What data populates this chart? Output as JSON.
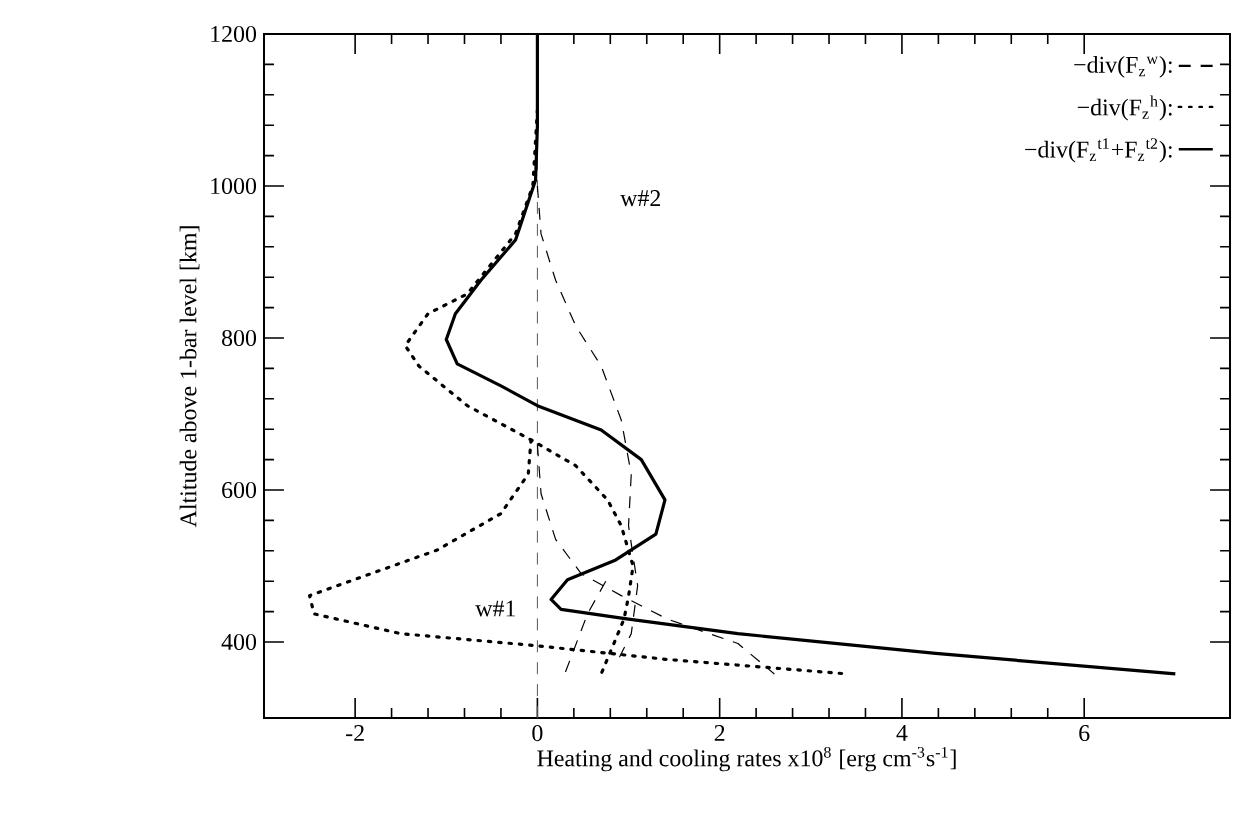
{
  "chart_data": {
    "type": "line",
    "xlabel": "Heating and cooling rates x10$^{8}$    [erg cm$^{-3}$s$^{-1}$]",
    "ylabel": "Altitude above 1-bar level  [km]",
    "xlim": [
      -3,
      7.6
    ],
    "ylim": [
      300,
      1200
    ],
    "xticks": [
      -2,
      0,
      2,
      4,
      6
    ],
    "yticks": [
      400,
      600,
      800,
      1000,
      1200
    ],
    "legend": "top right",
    "grid": false,
    "ref_lines": [
      {
        "axis": "x",
        "value": 0,
        "line_style": "dashed",
        "color": "#555555"
      }
    ],
    "annotations": [
      "w#2",
      "w#1"
    ],
    "series": [
      {
        "name": "−div(F$_{z}$$^{w}$):",
        "color": "#000000",
        "line_style": "dashed",
        "x": [
          0,
          0.04,
          0.2,
          0.42,
          0.7,
          0.92,
          1.03,
          1.0,
          1.1,
          1.03,
          0.9
        ],
        "values": [
          1000,
          937,
          876,
          816,
          763,
          692,
          621,
          553,
          474,
          411,
          380
        ]
      },
      {
        "name": "−div(F$_{z}$$^{h}$):",
        "color": "#000000",
        "line_style": "dotted",
        "x": [
          0,
          -0.05,
          -0.24,
          -0.77,
          -1.2,
          -1.45,
          -1.3,
          -0.77,
          -0.07,
          0.42,
          0.77,
          0.92,
          1.05,
          1.0,
          0.95,
          0.7
        ],
        "values": [
          1100,
          1000,
          937,
          858,
          832,
          790,
          763,
          711,
          666,
          632,
          587,
          553,
          500,
          460,
          430,
          358
        ]
      },
      {
        "name": "−div(F$_{z}$$^{t1}$+F$_{z}$$^{t2}$):",
        "color": "#000000",
        "line_style": "solid",
        "x": [
          0,
          0,
          -0.02,
          -0.24,
          -0.62,
          -0.9,
          -1.0,
          -0.88,
          -0.4,
          0,
          0.7,
          1.14,
          1.4,
          1.3,
          0.86,
          0.33,
          0.15,
          0.26,
          1.0,
          2.2,
          4.37,
          7.0
        ],
        "values": [
          1200,
          1079,
          1008,
          929,
          876,
          832,
          798,
          766,
          737,
          711,
          679,
          640,
          587,
          542,
          508,
          482,
          456,
          443,
          430,
          411,
          385,
          358
        ]
      },
      {
        "color": "#000000",
        "line_style": "dotted",
        "x": [
          -0.07,
          -0.1,
          -0.4,
          -1.1,
          -2.5,
          -2.45,
          -1.5,
          0,
          1.43,
          3.4
        ],
        "values": [
          666,
          621,
          569,
          521,
          461,
          437,
          411,
          395,
          377,
          358
        ]
      },
      {
        "color": "#000000",
        "line_style": "dashed",
        "x": [
          0.0,
          0.04,
          0.2,
          0.48,
          0.92,
          1.43,
          2.2,
          2.6
        ],
        "values": [
          660,
          595,
          535,
          490,
          461,
          430,
          398,
          358
        ]
      },
      {
        "color": "#000000",
        "line_style": "dashed",
        "x": [
          0.75,
          0.55,
          0.3
        ],
        "values": [
          480,
          437,
          358
        ]
      }
    ]
  }
}
